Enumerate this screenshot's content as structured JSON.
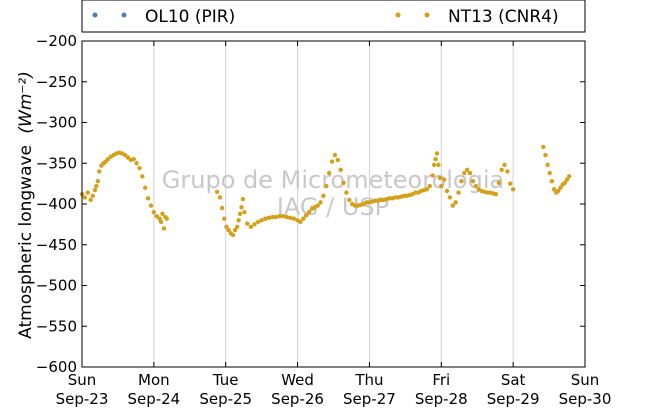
{
  "chart_data": {
    "type": "scatter",
    "title": "",
    "xlabel": "",
    "ylabel": "Atmospheric longwave (Wm⁻²)",
    "ylabel_main": "Atmospheric longwave",
    "ylabel_units": "(Wm⁻²)",
    "ylim": [
      -600,
      -200
    ],
    "y_ticks": [
      -200,
      -250,
      -300,
      -350,
      -400,
      -450,
      -500,
      -550,
      -600
    ],
    "y_tick_labels": [
      "−200",
      "−250",
      "−300",
      "−350",
      "−400",
      "−450",
      "−500",
      "−550",
      "−600"
    ],
    "x_range_days": [
      0,
      7
    ],
    "x_ticks": [
      {
        "day": "Sun",
        "date": "Sep-23"
      },
      {
        "day": "Mon",
        "date": "Sep-24"
      },
      {
        "day": "Tue",
        "date": "Sep-25"
      },
      {
        "day": "Wed",
        "date": "Sep-26"
      },
      {
        "day": "Thu",
        "date": "Sep-27"
      },
      {
        "day": "Fri",
        "date": "Sep-28"
      },
      {
        "day": "Sat",
        "date": "Sep-29"
      },
      {
        "day": "Sun",
        "date": "Sep-30"
      }
    ],
    "grid": "vertical",
    "legend_position": "top (above plot)",
    "series": [
      {
        "name": "OL10 (PIR)",
        "color": "#4a7fb0",
        "points": []
      },
      {
        "name": "NT13 (CNR4)",
        "color": "#d4a017",
        "points": [
          [
            0.0,
            -388
          ],
          [
            0.04,
            -392
          ],
          [
            0.08,
            -386
          ],
          [
            0.12,
            -395
          ],
          [
            0.15,
            -390
          ],
          [
            0.18,
            -383
          ],
          [
            0.2,
            -378
          ],
          [
            0.22,
            -372
          ],
          [
            0.24,
            -360
          ],
          [
            0.27,
            -353
          ],
          [
            0.3,
            -350
          ],
          [
            0.33,
            -348
          ],
          [
            0.36,
            -345
          ],
          [
            0.4,
            -342
          ],
          [
            0.44,
            -340
          ],
          [
            0.48,
            -338
          ],
          [
            0.52,
            -337
          ],
          [
            0.56,
            -338
          ],
          [
            0.6,
            -340
          ],
          [
            0.64,
            -343
          ],
          [
            0.68,
            -346
          ],
          [
            0.72,
            -345
          ],
          [
            0.76,
            -350
          ],
          [
            0.8,
            -356
          ],
          [
            0.84,
            -366
          ],
          [
            0.88,
            -380
          ],
          [
            0.92,
            -393
          ],
          [
            0.96,
            -402
          ],
          [
            1.0,
            -410
          ],
          [
            1.04,
            -415
          ],
          [
            1.08,
            -418
          ],
          [
            1.1,
            -422
          ],
          [
            1.12,
            -412
          ],
          [
            1.14,
            -430
          ],
          [
            1.16,
            -416
          ],
          [
            1.18,
            -418
          ],
          [
            1.88,
            -385
          ],
          [
            1.92,
            -392
          ],
          [
            1.95,
            -405
          ],
          [
            1.98,
            -418
          ],
          [
            2.01,
            -428
          ],
          [
            2.04,
            -432
          ],
          [
            2.07,
            -436
          ],
          [
            2.1,
            -438
          ],
          [
            2.13,
            -432
          ],
          [
            2.16,
            -428
          ],
          [
            2.18,
            -420
          ],
          [
            2.2,
            -412
          ],
          [
            2.22,
            -404
          ],
          [
            2.24,
            -394
          ],
          [
            2.26,
            -410
          ],
          [
            2.3,
            -424
          ],
          [
            2.35,
            -428
          ],
          [
            2.4,
            -425
          ],
          [
            2.45,
            -422
          ],
          [
            2.5,
            -420
          ],
          [
            2.55,
            -418
          ],
          [
            2.6,
            -417
          ],
          [
            2.65,
            -416
          ],
          [
            2.7,
            -416
          ],
          [
            2.75,
            -415
          ],
          [
            2.8,
            -415
          ],
          [
            2.85,
            -416
          ],
          [
            2.9,
            -417
          ],
          [
            2.95,
            -418
          ],
          [
            3.0,
            -420
          ],
          [
            3.04,
            -422
          ],
          [
            3.08,
            -418
          ],
          [
            3.12,
            -414
          ],
          [
            3.16,
            -410
          ],
          [
            3.2,
            -406
          ],
          [
            3.24,
            -404
          ],
          [
            3.28,
            -402
          ],
          [
            3.32,
            -398
          ],
          [
            3.36,
            -390
          ],
          [
            3.4,
            -378
          ],
          [
            3.44,
            -362
          ],
          [
            3.48,
            -348
          ],
          [
            3.52,
            -340
          ],
          [
            3.56,
            -346
          ],
          [
            3.6,
            -358
          ],
          [
            3.64,
            -374
          ],
          [
            3.68,
            -386
          ],
          [
            3.72,
            -395
          ],
          [
            3.76,
            -400
          ],
          [
            3.8,
            -402
          ],
          [
            3.84,
            -402
          ],
          [
            3.88,
            -401
          ],
          [
            3.92,
            -400
          ],
          [
            3.96,
            -398
          ],
          [
            4.0,
            -398
          ],
          [
            4.04,
            -397
          ],
          [
            4.08,
            -396
          ],
          [
            4.12,
            -396
          ],
          [
            4.16,
            -395
          ],
          [
            4.2,
            -395
          ],
          [
            4.24,
            -394
          ],
          [
            4.28,
            -393
          ],
          [
            4.32,
            -393
          ],
          [
            4.36,
            -392
          ],
          [
            4.4,
            -392
          ],
          [
            4.44,
            -391
          ],
          [
            4.48,
            -390
          ],
          [
            4.52,
            -390
          ],
          [
            4.56,
            -389
          ],
          [
            4.6,
            -388
          ],
          [
            4.64,
            -386
          ],
          [
            4.68,
            -386
          ],
          [
            4.72,
            -384
          ],
          [
            4.76,
            -383
          ],
          [
            4.8,
            -382
          ],
          [
            4.84,
            -378
          ],
          [
            4.88,
            -365
          ],
          [
            4.9,
            -352
          ],
          [
            4.92,
            -345
          ],
          [
            4.94,
            -338
          ],
          [
            4.96,
            -352
          ],
          [
            4.98,
            -368
          ],
          [
            5.0,
            -378
          ],
          [
            5.04,
            -370
          ],
          [
            5.08,
            -384
          ],
          [
            5.12,
            -392
          ],
          [
            5.16,
            -402
          ],
          [
            5.2,
            -398
          ],
          [
            5.24,
            -386
          ],
          [
            5.28,
            -372
          ],
          [
            5.32,
            -362
          ],
          [
            5.36,
            -358
          ],
          [
            5.4,
            -362
          ],
          [
            5.44,
            -372
          ],
          [
            5.48,
            -378
          ],
          [
            5.52,
            -382
          ],
          [
            5.56,
            -384
          ],
          [
            5.6,
            -385
          ],
          [
            5.64,
            -386
          ],
          [
            5.68,
            -386
          ],
          [
            5.72,
            -387
          ],
          [
            5.76,
            -388
          ],
          [
            5.8,
            -374
          ],
          [
            5.84,
            -358
          ],
          [
            5.88,
            -352
          ],
          [
            5.92,
            -360
          ],
          [
            5.96,
            -375
          ],
          [
            6.0,
            -382
          ],
          [
            6.42,
            -330
          ],
          [
            6.45,
            -340
          ],
          [
            6.48,
            -352
          ],
          [
            6.51,
            -362
          ],
          [
            6.54,
            -372
          ],
          [
            6.57,
            -382
          ],
          [
            6.6,
            -386
          ],
          [
            6.63,
            -384
          ],
          [
            6.66,
            -380
          ],
          [
            6.69,
            -376
          ],
          [
            6.72,
            -374
          ],
          [
            6.75,
            -370
          ],
          [
            6.78,
            -366
          ]
        ]
      }
    ],
    "watermark_lines": [
      "Grupo de Micrometeorologia",
      "IAG / USP"
    ]
  }
}
